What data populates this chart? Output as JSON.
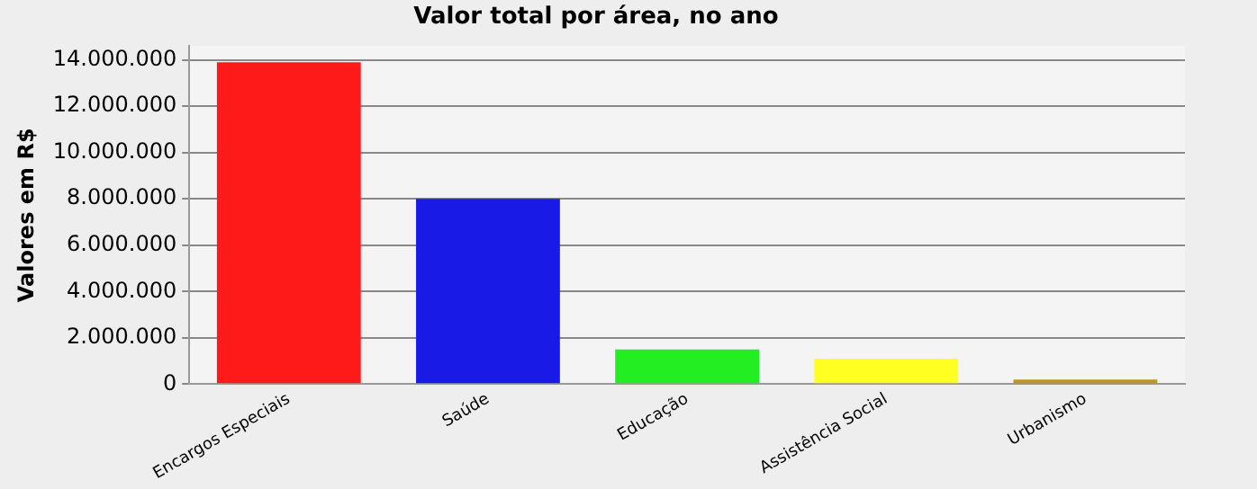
{
  "chart_data": {
    "type": "bar",
    "title": "Valor total por área, no ano",
    "ylabel": "Valores em R$",
    "categories": [
      "Encargos Especiais",
      "Saúde",
      "Educação",
      "Assistência Social",
      "Urbanismo"
    ],
    "values": [
      13900000,
      8000000,
      1500000,
      1100000,
      200000
    ],
    "colors": [
      "#ff1a1a",
      "#1a1ae6",
      "#22ee22",
      "#ffff22",
      "#c0961e"
    ],
    "ylim": [
      0,
      14600000
    ],
    "yticks": [
      {
        "value": 0,
        "label": "0"
      },
      {
        "value": 2000000,
        "label": "2.000.000"
      },
      {
        "value": 4000000,
        "label": "4.000.000"
      },
      {
        "value": 6000000,
        "label": "6.000.000"
      },
      {
        "value": 8000000,
        "label": "8.000.000"
      },
      {
        "value": 10000000,
        "label": "10.000.000"
      },
      {
        "value": 12000000,
        "label": "12.000.000"
      },
      {
        "value": 14000000,
        "label": "14.000.000"
      }
    ],
    "grid": "y",
    "legend": false
  }
}
